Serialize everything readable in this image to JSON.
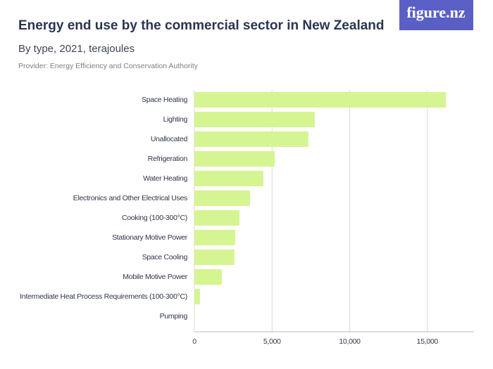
{
  "logo": "figure.nz",
  "chart_data": {
    "type": "hbar",
    "title": "Energy end use by the commercial sector in New Zealand",
    "subtitle": "By type, 2021, terajoules",
    "provider": "Provider: Energy Efficiency and Conservation Authority",
    "categories": [
      "Space Heating",
      "Lighting",
      "Unallocated",
      "Refrigeration",
      "Water Heating",
      "Electronics and Other Electrical Uses",
      "Cooking (100-300°C)",
      "Stationary Motive Power",
      "Space Cooling",
      "Mobile Motive Power",
      "Intermediate Heat Process Requirements (100-300°C)",
      "Pumping"
    ],
    "values": [
      16200,
      7750,
      7340,
      5170,
      4440,
      3580,
      2900,
      2630,
      2580,
      1770,
      360,
      20
    ],
    "color": "#d5f592",
    "xlim": [
      0,
      18000
    ],
    "xticks": [
      0,
      {
        "value": 5000,
        "label": "5,000"
      },
      {
        "value": 10000,
        "label": "10,000"
      },
      {
        "value": 15000,
        "label": "15,000"
      }
    ],
    "grid": true
  }
}
